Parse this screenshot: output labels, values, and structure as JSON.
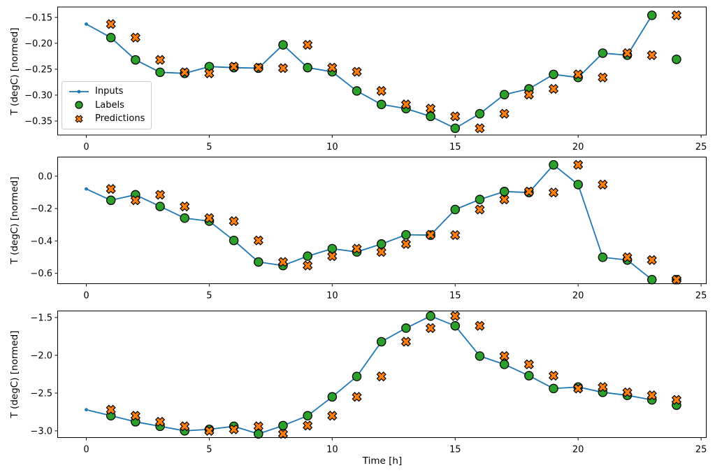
{
  "figure": {
    "background": "#ffffff"
  },
  "colors": {
    "inputs": "#1f77b4",
    "labels": "#2ca02c",
    "predictions": "#ff7f0e",
    "marker_edge": "#000000",
    "axis": "#000000",
    "legend_border": "#cccccc"
  },
  "legend": {
    "position": "upper-left area of first subplot",
    "items": [
      {
        "label": "Inputs",
        "marker": "line-with-dot"
      },
      {
        "label": "Labels",
        "marker": "filled-circle"
      },
      {
        "label": "Predictions",
        "marker": "thick-x"
      }
    ]
  },
  "chart_data": [
    {
      "type": "line",
      "ylabel": "T (degC) [normed]",
      "xlabel": "",
      "xlim": [
        -1.165,
        25.21
      ],
      "ylim": [
        -0.377,
        -0.13
      ],
      "xticks": [
        0,
        5,
        10,
        15,
        20,
        25
      ],
      "xtick_labels": [
        "0",
        "5",
        "10",
        "15",
        "20",
        "25"
      ],
      "yticks": [
        -0.15,
        -0.2,
        -0.25,
        -0.3,
        -0.35
      ],
      "ytick_labels": [
        "−0.15",
        "−0.20",
        "−0.25",
        "−0.30",
        "−0.35"
      ],
      "grid": false,
      "series": [
        {
          "name": "Inputs",
          "style": "line-dot",
          "x": [
            0,
            1,
            2,
            3,
            4,
            5,
            6,
            7,
            8,
            9,
            10,
            11,
            12,
            13,
            14,
            15,
            16,
            17,
            18,
            19,
            20,
            21,
            22,
            23
          ],
          "y": [
            -0.163,
            -0.189,
            -0.232,
            -0.256,
            -0.258,
            -0.245,
            -0.247,
            -0.248,
            -0.203,
            -0.247,
            -0.255,
            -0.292,
            -0.318,
            -0.326,
            -0.341,
            -0.364,
            -0.336,
            -0.299,
            -0.288,
            -0.26,
            -0.266,
            -0.219,
            -0.223,
            -0.146
          ]
        },
        {
          "name": "Labels",
          "style": "scatter-circle",
          "x": [
            1,
            2,
            3,
            4,
            5,
            6,
            7,
            8,
            9,
            10,
            11,
            12,
            13,
            14,
            15,
            16,
            17,
            18,
            19,
            20,
            21,
            22,
            23,
            24
          ],
          "y": [
            -0.189,
            -0.232,
            -0.256,
            -0.258,
            -0.245,
            -0.247,
            -0.248,
            -0.203,
            -0.247,
            -0.255,
            -0.292,
            -0.318,
            -0.326,
            -0.341,
            -0.364,
            -0.336,
            -0.299,
            -0.288,
            -0.26,
            -0.266,
            -0.219,
            -0.223,
            -0.146,
            -0.231
          ]
        },
        {
          "name": "Predictions",
          "style": "scatter-x",
          "x": [
            1,
            2,
            3,
            4,
            5,
            6,
            7,
            8,
            9,
            10,
            11,
            12,
            13,
            14,
            15,
            16,
            17,
            18,
            19,
            20,
            21,
            22,
            23,
            24
          ],
          "y": [
            -0.163,
            -0.189,
            -0.232,
            -0.256,
            -0.258,
            -0.245,
            -0.247,
            -0.248,
            -0.203,
            -0.247,
            -0.255,
            -0.292,
            -0.318,
            -0.326,
            -0.341,
            -0.364,
            -0.336,
            -0.299,
            -0.288,
            -0.26,
            -0.266,
            -0.219,
            -0.223,
            -0.146
          ]
        }
      ]
    },
    {
      "type": "line",
      "ylabel": "T (degC) [normed]",
      "xlabel": "",
      "xlim": [
        -1.165,
        25.21
      ],
      "ylim": [
        -0.664,
        0.118
      ],
      "xticks": [
        0,
        5,
        10,
        15,
        20,
        25
      ],
      "xtick_labels": [
        "0",
        "5",
        "10",
        "15",
        "20",
        "25"
      ],
      "yticks": [
        0.0,
        -0.2,
        -0.4,
        -0.6
      ],
      "ytick_labels": [
        "0.0",
        "−0.2",
        "−0.4",
        "−0.6"
      ],
      "grid": false,
      "series": [
        {
          "name": "Inputs",
          "style": "line-dot",
          "x": [
            0,
            1,
            2,
            3,
            4,
            5,
            6,
            7,
            8,
            9,
            10,
            11,
            12,
            13,
            14,
            15,
            16,
            17,
            18,
            19,
            20,
            21,
            22,
            23
          ],
          "y": [
            -0.079,
            -0.149,
            -0.115,
            -0.187,
            -0.259,
            -0.278,
            -0.397,
            -0.53,
            -0.552,
            -0.494,
            -0.448,
            -0.468,
            -0.419,
            -0.362,
            -0.364,
            -0.206,
            -0.144,
            -0.095,
            -0.101,
            0.07,
            -0.052,
            -0.501,
            -0.518,
            -0.639
          ]
        },
        {
          "name": "Labels",
          "style": "scatter-circle",
          "x": [
            1,
            2,
            3,
            4,
            5,
            6,
            7,
            8,
            9,
            10,
            11,
            12,
            13,
            14,
            15,
            16,
            17,
            18,
            19,
            20,
            21,
            22,
            23,
            24
          ],
          "y": [
            -0.149,
            -0.115,
            -0.187,
            -0.259,
            -0.278,
            -0.397,
            -0.53,
            -0.552,
            -0.494,
            -0.448,
            -0.468,
            -0.419,
            -0.362,
            -0.364,
            -0.206,
            -0.144,
            -0.095,
            -0.101,
            0.07,
            -0.052,
            -0.501,
            -0.518,
            -0.639,
            -0.639
          ]
        },
        {
          "name": "Predictions",
          "style": "scatter-x",
          "x": [
            1,
            2,
            3,
            4,
            5,
            6,
            7,
            8,
            9,
            10,
            11,
            12,
            13,
            14,
            15,
            16,
            17,
            18,
            19,
            20,
            21,
            22,
            23,
            24
          ],
          "y": [
            -0.079,
            -0.149,
            -0.115,
            -0.187,
            -0.259,
            -0.278,
            -0.397,
            -0.53,
            -0.552,
            -0.494,
            -0.448,
            -0.468,
            -0.419,
            -0.362,
            -0.364,
            -0.206,
            -0.144,
            -0.095,
            -0.101,
            0.07,
            -0.052,
            -0.501,
            -0.518,
            -0.639
          ]
        }
      ]
    },
    {
      "type": "line",
      "ylabel": "T (degC) [normed]",
      "xlabel": "Time [h]",
      "xlim": [
        -1.165,
        25.21
      ],
      "ylim": [
        -3.089,
        -1.413
      ],
      "xticks": [
        0,
        5,
        10,
        15,
        20,
        25
      ],
      "xtick_labels": [
        "0",
        "5",
        "10",
        "15",
        "20",
        "25"
      ],
      "yticks": [
        -1.5,
        -2.0,
        -2.5,
        -3.0
      ],
      "ytick_labels": [
        "−1.5",
        "−2.0",
        "−2.5",
        "−3.0"
      ],
      "grid": false,
      "series": [
        {
          "name": "Inputs",
          "style": "line-dot",
          "x": [
            0,
            1,
            2,
            3,
            4,
            5,
            6,
            7,
            8,
            9,
            10,
            11,
            12,
            13,
            14,
            15,
            16,
            17,
            18,
            19,
            20,
            21,
            22,
            23
          ],
          "y": [
            -2.72,
            -2.8,
            -2.88,
            -2.94,
            -3.0,
            -2.98,
            -2.94,
            -3.04,
            -2.93,
            -2.8,
            -2.55,
            -2.28,
            -1.82,
            -1.64,
            -1.48,
            -1.61,
            -2.01,
            -2.12,
            -2.27,
            -2.44,
            -2.42,
            -2.49,
            -2.53,
            -2.59
          ]
        },
        {
          "name": "Labels",
          "style": "scatter-circle",
          "x": [
            1,
            2,
            3,
            4,
            5,
            6,
            7,
            8,
            9,
            10,
            11,
            12,
            13,
            14,
            15,
            16,
            17,
            18,
            19,
            20,
            21,
            22,
            23,
            24
          ],
          "y": [
            -2.8,
            -2.88,
            -2.94,
            -3.0,
            -2.98,
            -2.94,
            -3.04,
            -2.93,
            -2.8,
            -2.55,
            -2.28,
            -1.82,
            -1.64,
            -1.48,
            -1.61,
            -2.01,
            -2.12,
            -2.27,
            -2.44,
            -2.42,
            -2.49,
            -2.53,
            -2.59,
            -2.66
          ]
        },
        {
          "name": "Predictions",
          "style": "scatter-x",
          "x": [
            1,
            2,
            3,
            4,
            5,
            6,
            7,
            8,
            9,
            10,
            11,
            12,
            13,
            14,
            15,
            16,
            17,
            18,
            19,
            20,
            21,
            22,
            23,
            24
          ],
          "y": [
            -2.72,
            -2.8,
            -2.88,
            -2.94,
            -3.0,
            -2.98,
            -2.94,
            -3.04,
            -2.93,
            -2.8,
            -2.55,
            -2.28,
            -1.82,
            -1.64,
            -1.48,
            -1.61,
            -2.01,
            -2.12,
            -2.27,
            -2.44,
            -2.42,
            -2.49,
            -2.53,
            -2.59
          ]
        }
      ]
    }
  ]
}
